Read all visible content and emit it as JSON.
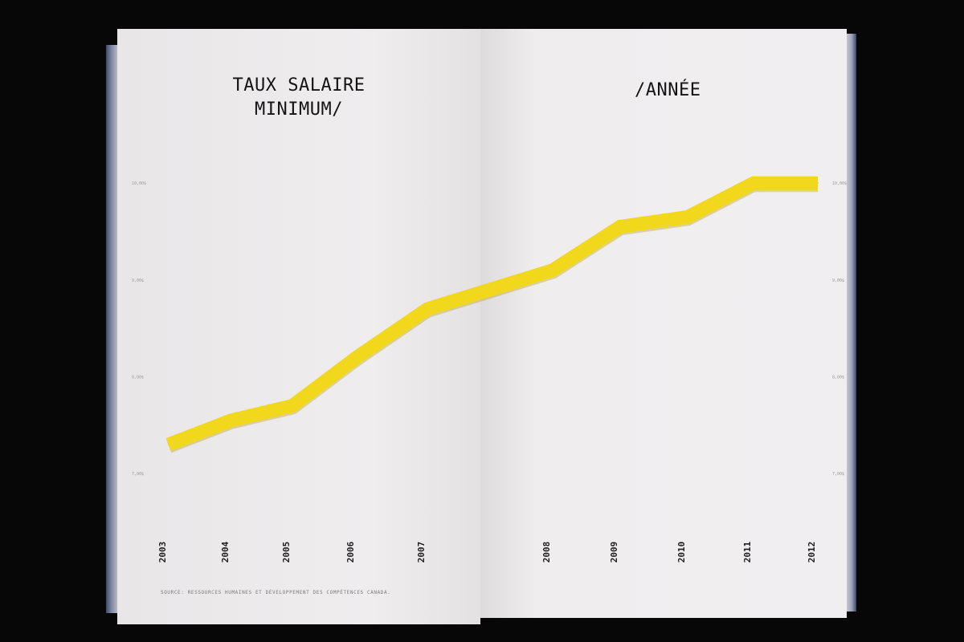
{
  "chart_data": {
    "type": "line",
    "title_line1": "TAUX SALAIRE",
    "title_line2": "MINIMUM/",
    "title_right": "/ANNÉE",
    "source": "SOURCE: RESSOURCES HUMAINES ET DÉVELOPPEMENT DES COMPÉTENCES CANADA.",
    "x": [
      "2003",
      "2004",
      "2005",
      "2006",
      "2007",
      "2008",
      "2009",
      "2010",
      "2011",
      "2012"
    ],
    "values": [
      7.3,
      7.55,
      7.7,
      8.2,
      8.7,
      9.1,
      9.55,
      9.65,
      10.0,
      10.0
    ],
    "ylim": [
      7.0,
      10.25
    ],
    "ylabel_left": [
      "7,00$",
      "8,00$",
      "9,00$",
      "10,00$"
    ],
    "ylabel_right": [
      "7,00$",
      "8,00$",
      "9,00$",
      "10,00$"
    ],
    "color": "#f2d81c",
    "grid": false
  }
}
